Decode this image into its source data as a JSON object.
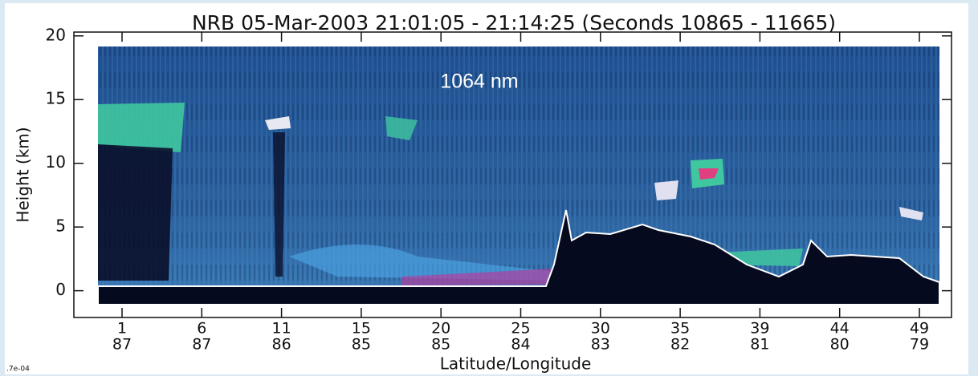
{
  "chart_data": {
    "type": "curtain",
    "title": "NRB 05-Mar-2003 21:01:05 - 21:14:25 (Seconds 10865 - 11665)",
    "y_label": "Height (km)",
    "x_label": "Latitude/Longitude",
    "annotation": "1064 nm",
    "corner_note": ".7e-04",
    "ylim": [
      -2.1,
      20.3
    ],
    "yticks": [
      0,
      5,
      10,
      15,
      20
    ],
    "x_tick_labels": [
      {
        "lat": "1",
        "lon": "87"
      },
      {
        "lat": "6",
        "lon": "87"
      },
      {
        "lat": "11",
        "lon": "86"
      },
      {
        "lat": "15",
        "lon": "85"
      },
      {
        "lat": "20",
        "lon": "85"
      },
      {
        "lat": "25",
        "lon": "84"
      },
      {
        "lat": "30",
        "lon": "83"
      },
      {
        "lat": "35",
        "lon": "82"
      },
      {
        "lat": "39",
        "lon": "81"
      },
      {
        "lat": "44",
        "lon": "80"
      },
      {
        "lat": "49",
        "lon": "79"
      }
    ]
  }
}
